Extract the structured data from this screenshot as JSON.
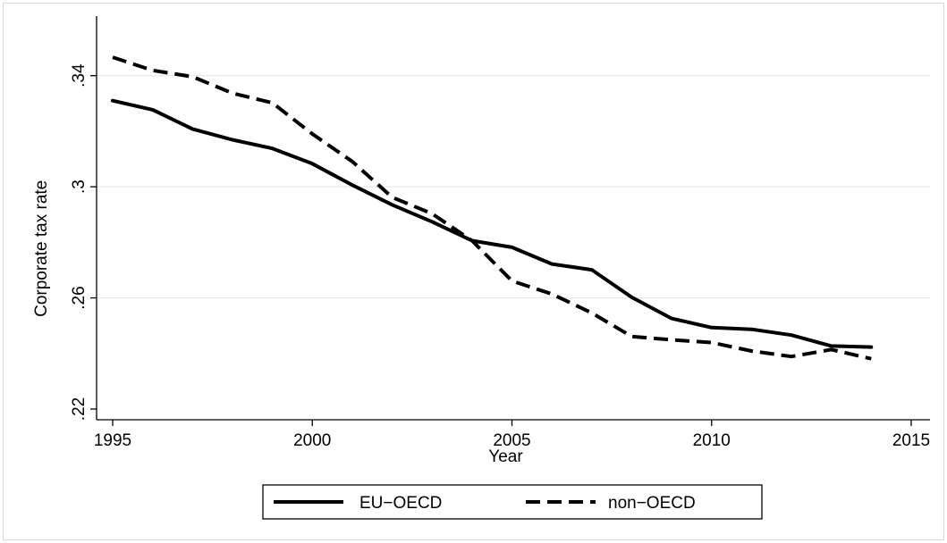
{
  "chart_data": {
    "type": "line",
    "title": "",
    "xlabel": "Year",
    "ylabel": "Corporate tax rate",
    "xlim": [
      1995,
      2015
    ],
    "ylim": [
      0.22,
      0.355
    ],
    "x_ticks": [
      1995,
      2000,
      2005,
      2010,
      2015
    ],
    "x_tick_labels": [
      "1995",
      "2000",
      "2005",
      "2010",
      "2015"
    ],
    "y_ticks": [
      0.22,
      0.26,
      0.3,
      0.34
    ],
    "y_tick_labels": [
      ".22",
      ".26",
      ".3",
      ".34"
    ],
    "grid": "horizontal",
    "legend_position": "bottom",
    "x": [
      1995,
      1996,
      1997,
      1998,
      1999,
      2000,
      2001,
      2002,
      2003,
      2004,
      2005,
      2006,
      2007,
      2008,
      2009,
      2010,
      2011,
      2012,
      2013,
      2014
    ],
    "series": [
      {
        "name": "EU−OECD",
        "style": "solid",
        "color": "#000000",
        "values": [
          0.331,
          0.3277,
          0.3208,
          0.3169,
          0.3138,
          0.3083,
          0.3006,
          0.2935,
          0.2874,
          0.2806,
          0.2782,
          0.2722,
          0.2701,
          0.2602,
          0.2526,
          0.2493,
          0.2487,
          0.2466,
          0.2427,
          0.2423
        ]
      },
      {
        "name": "non−OECD",
        "style": "dashed",
        "color": "#000000",
        "values": [
          0.3466,
          0.3419,
          0.3396,
          0.3337,
          0.3302,
          0.319,
          0.3091,
          0.2962,
          0.2903,
          0.2806,
          0.2661,
          0.2614,
          0.2546,
          0.2461,
          0.2449,
          0.2439,
          0.2409,
          0.2389,
          0.2414,
          0.2381
        ]
      }
    ]
  }
}
